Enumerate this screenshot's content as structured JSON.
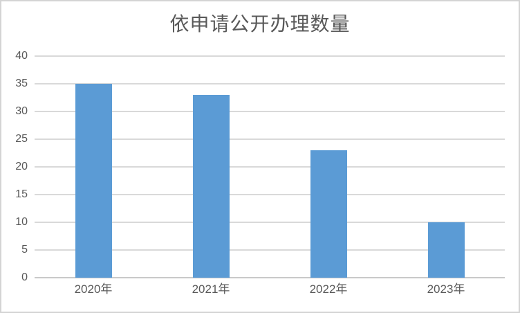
{
  "page": {
    "background_color": "#ffffff",
    "border_color": "#d4d4d4"
  },
  "chart_data": {
    "type": "bar",
    "title": "依申请公开办理数量",
    "categories": [
      "2020年",
      "2021年",
      "2022年",
      "2023年"
    ],
    "values": [
      35,
      33,
      23,
      10
    ],
    "xlabel": "",
    "ylabel": "",
    "ylim": [
      0,
      40
    ],
    "ytick_step": 5,
    "ytick_labels": [
      "0",
      "5",
      "10",
      "15",
      "20",
      "25",
      "30",
      "35",
      "40"
    ],
    "grid": "horizontal",
    "legend": "none",
    "bar_color": "#5b9bd5",
    "gridline_color": "#d9d9d9",
    "axis_line_color": "#c9c9c9",
    "text_color": "#595959",
    "title_color": "#595959"
  }
}
